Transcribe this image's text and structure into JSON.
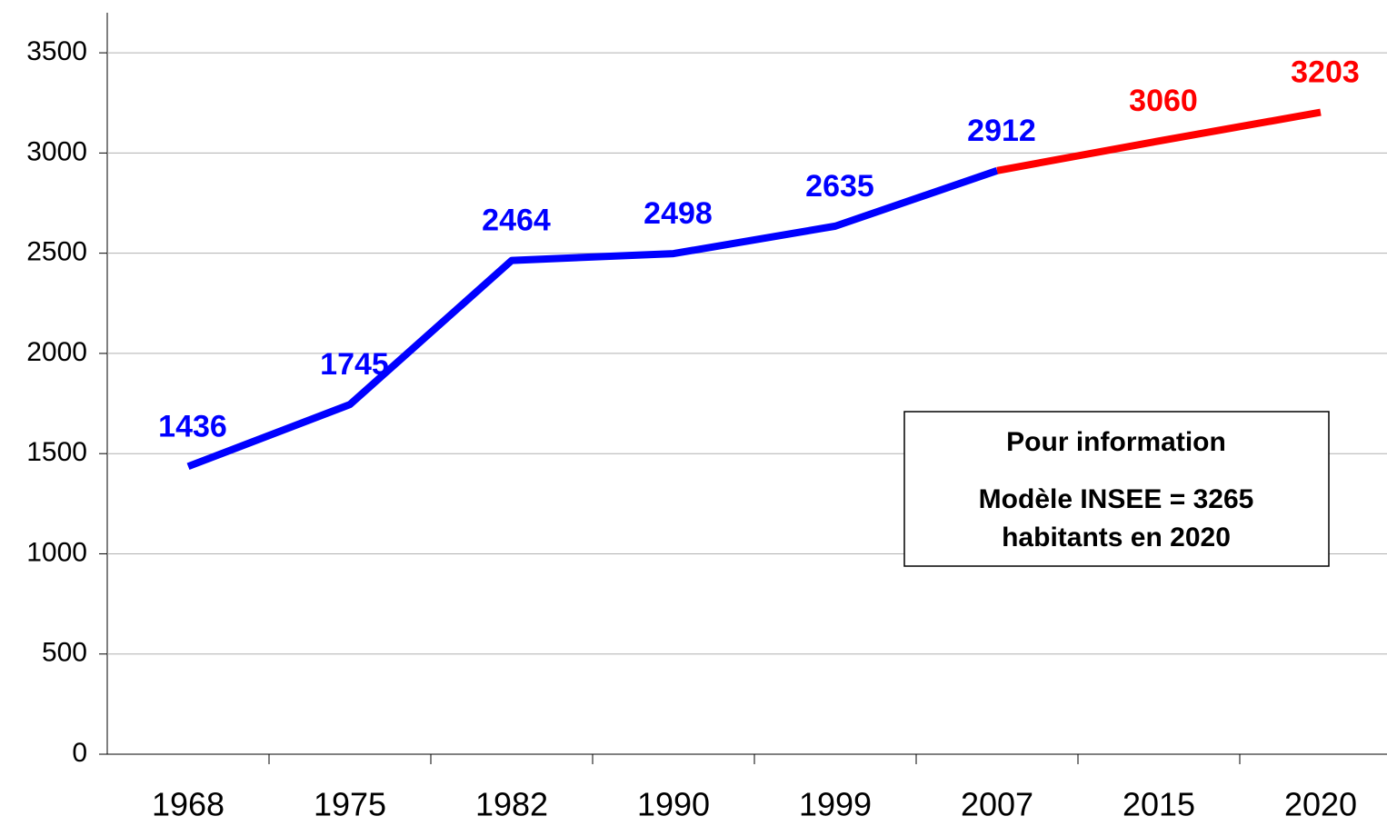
{
  "chart_data": {
    "type": "line",
    "categories": [
      "1968",
      "1975",
      "1982",
      "1990",
      "1999",
      "2007",
      "2015",
      "2020"
    ],
    "series": [
      {
        "color": "#0000ff",
        "values": [
          1436,
          1745,
          2464,
          2498,
          2635,
          2912,
          null,
          null
        ]
      },
      {
        "color": "#ff0000",
        "values": [
          null,
          null,
          null,
          null,
          null,
          2912,
          3060,
          3203
        ]
      }
    ],
    "ylim": [
      0,
      3700
    ],
    "yticks": [
      0,
      500,
      1000,
      1500,
      2000,
      2500,
      3000,
      3500
    ],
    "grid": true,
    "annotation": [
      "Pour information",
      "Modèle INSEE = 3265",
      "habitants en 2020"
    ]
  }
}
